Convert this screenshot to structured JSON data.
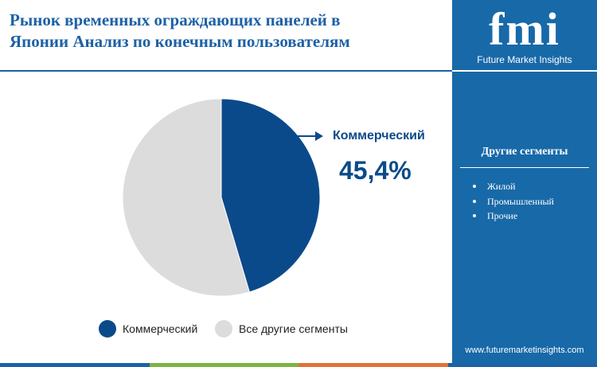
{
  "header": {
    "title_line1": "Рынок временных ограждающих панелей в",
    "title_line2": "Японии Анализ по конечным пользователям"
  },
  "brand": {
    "logo_text": "fmi",
    "name": "Future Market Insights",
    "website": "www.futuremarketinsights.com"
  },
  "sidebar": {
    "segments_title": "Другие сегменты",
    "segments": [
      "Жилой",
      "Промышленный",
      "Прочие"
    ]
  },
  "callout": {
    "label": "Коммерческий",
    "value": "45,4%"
  },
  "legend": {
    "items": [
      {
        "label": "Коммерческий",
        "color": "#0b4a8a"
      },
      {
        "label": "Все другие сегменты",
        "color": "#dcdcdc"
      }
    ]
  },
  "colors": {
    "brand_blue": "#1869a8",
    "slice_primary": "#0b4a8a",
    "slice_other": "#dcdcdc",
    "bottom_bar": [
      "#1d61a6",
      "#7cb342",
      "#e0723a",
      "#1d61a6"
    ]
  },
  "chart_data": {
    "type": "pie",
    "categories": [
      "Коммерческий",
      "Все другие сегменты"
    ],
    "values": [
      45.4,
      54.6
    ],
    "unit": "%",
    "start_angle": "12 o'clock, clockwise"
  }
}
